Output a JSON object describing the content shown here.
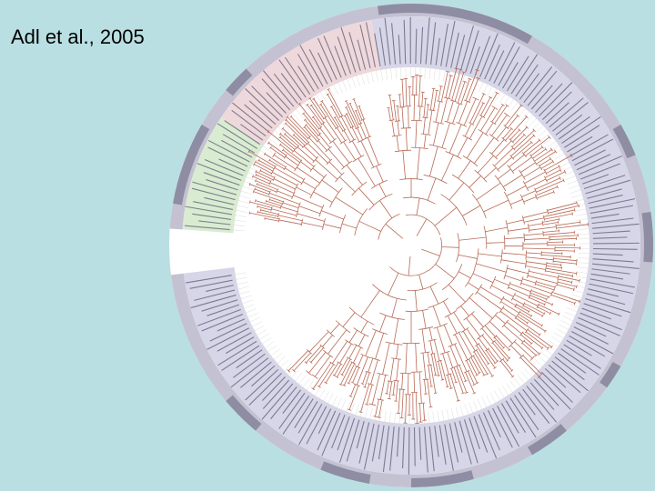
{
  "slide": {
    "citation": "Adl et al., 2005"
  }
}
